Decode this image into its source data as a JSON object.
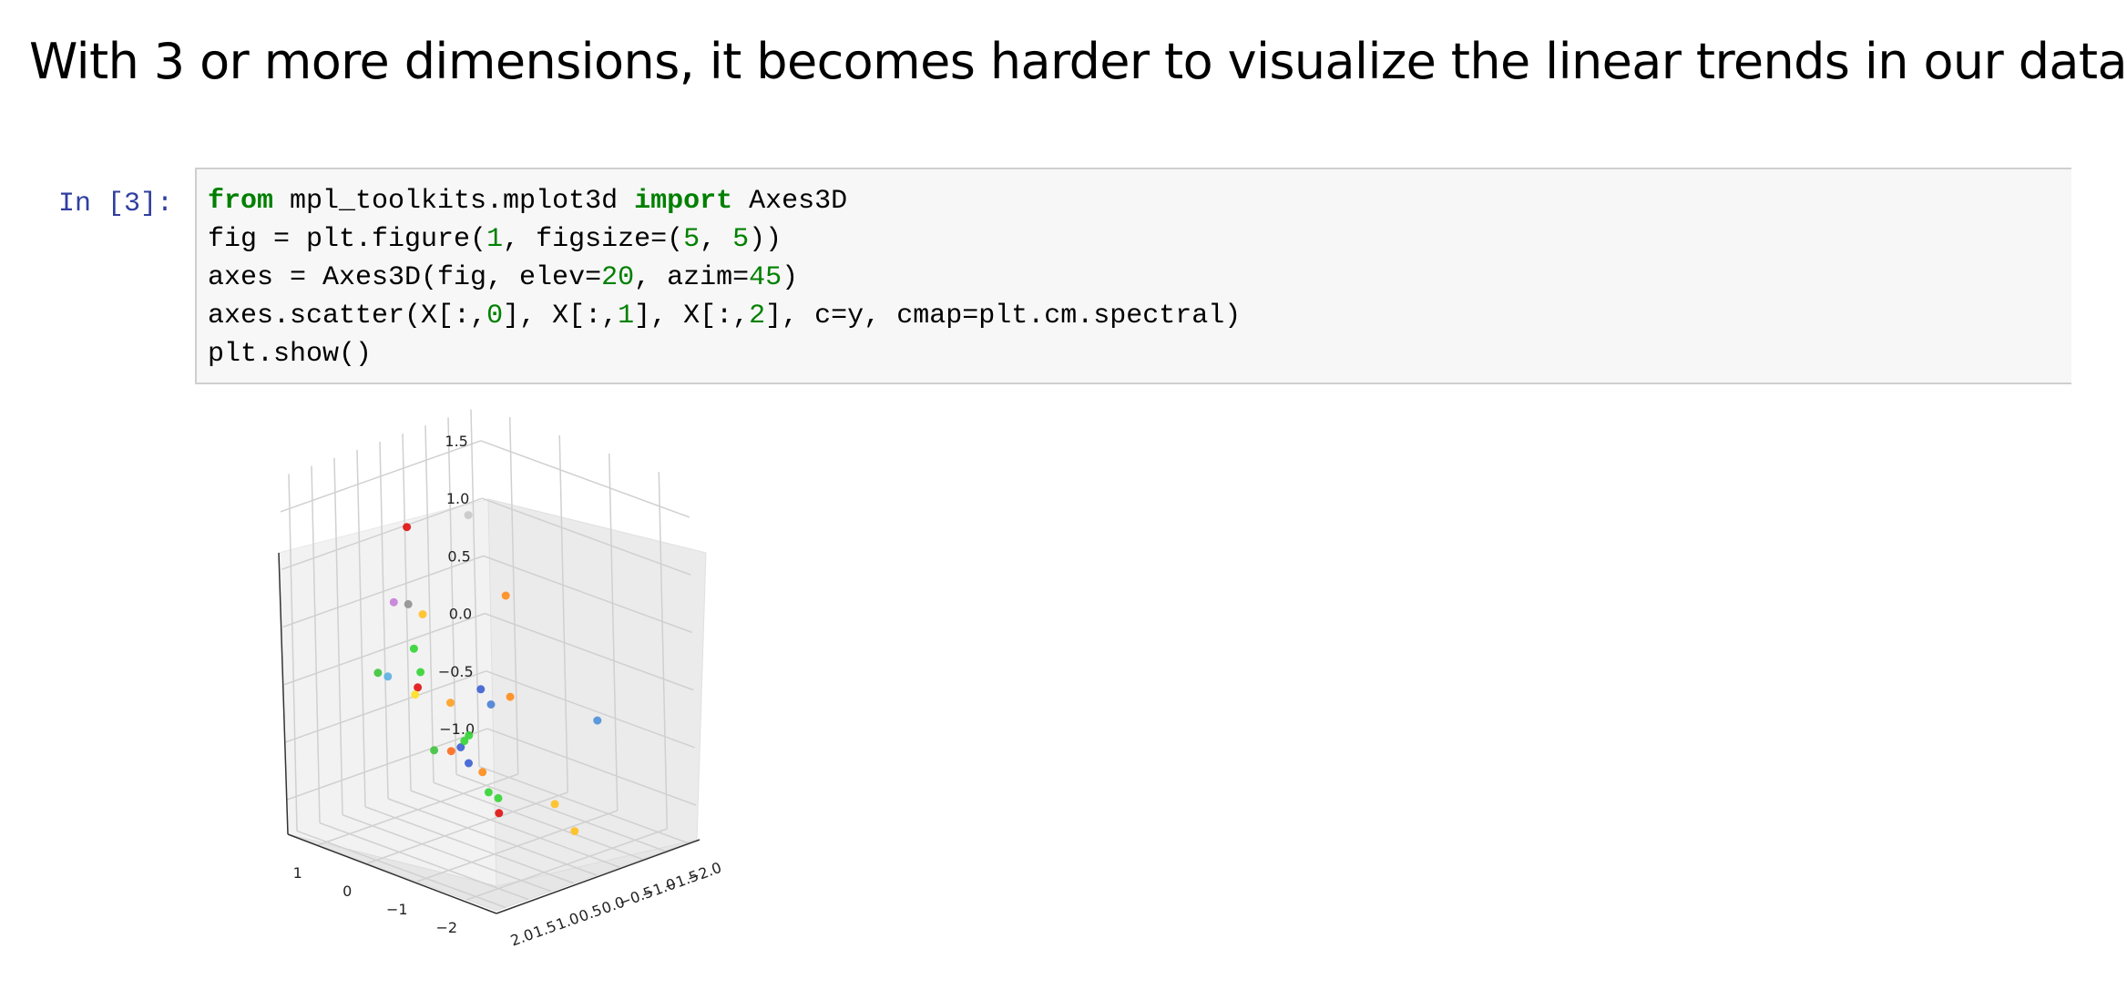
{
  "heading": "With 3 or more dimensions, it becomes harder to visualize the linear trends in our data",
  "cell": {
    "prompt": "In [3]:",
    "code_lines": [
      [
        {
          "t": "kw",
          "v": "from"
        },
        {
          "t": "p",
          "v": " mpl_toolkits.mplot3d "
        },
        {
          "t": "kw",
          "v": "import"
        },
        {
          "t": "p",
          "v": " Axes3D"
        }
      ],
      [
        {
          "t": "p",
          "v": "fig = plt.figure("
        },
        {
          "t": "num",
          "v": "1"
        },
        {
          "t": "p",
          "v": ", figsize=("
        },
        {
          "t": "num",
          "v": "5"
        },
        {
          "t": "p",
          "v": ", "
        },
        {
          "t": "num",
          "v": "5"
        },
        {
          "t": "p",
          "v": "))"
        }
      ],
      [
        {
          "t": "p",
          "v": "axes = Axes3D(fig, elev="
        },
        {
          "t": "num",
          "v": "20"
        },
        {
          "t": "p",
          "v": ", azim="
        },
        {
          "t": "num",
          "v": "45"
        },
        {
          "t": "p",
          "v": ")"
        }
      ],
      [
        {
          "t": "p",
          "v": "axes.scatter(X[:,"
        },
        {
          "t": "num",
          "v": "0"
        },
        {
          "t": "p",
          "v": "], X[:,"
        },
        {
          "t": "num",
          "v": "1"
        },
        {
          "t": "p",
          "v": "], X[:,"
        },
        {
          "t": "num",
          "v": "2"
        },
        {
          "t": "p",
          "v": "], c=y, cmap=plt.cm.spectral)"
        }
      ],
      [
        {
          "t": "p",
          "v": "plt.show()"
        }
      ]
    ]
  },
  "output": {
    "chart_data": {
      "type": "scatter",
      "projection": "3d",
      "elev": 20,
      "azim": 45,
      "grid": true,
      "title": "",
      "xlabel": "",
      "ylabel": "",
      "zlabel": "",
      "x_ticks": [
        "−2",
        "−1",
        "0",
        "1"
      ],
      "y_ticks": [
        "2.0",
        "1.5",
        "1.0",
        "0.5",
        "0.0",
        "−0.5",
        "−1.0",
        "−1.5",
        "−2.0"
      ],
      "z_ticks": [
        "1.5",
        "1.0",
        "0.5",
        "0.0",
        "−0.5",
        "−1.0"
      ],
      "xlim": [
        -2.6,
        1.6
      ],
      "ylim": [
        -2.2,
        2.2
      ],
      "zlim": [
        -1.3,
        1.8
      ],
      "points": [
        {
          "x": -2.5,
          "y": -0.2,
          "z": 0.0,
          "color": "#4a90d9"
        },
        {
          "x": -1.0,
          "y": 0.9,
          "z": 1.7,
          "color": "#c8c8c8"
        },
        {
          "x": -1.35,
          "y": 0.5,
          "z": 1.0,
          "color": "#ff8c1a"
        },
        {
          "x": -1.3,
          "y": 0.4,
          "z": 0.1,
          "color": "#ff8c1a"
        },
        {
          "x": -1.0,
          "y": 0.5,
          "z": 0.0,
          "color": "#4a7fd4"
        },
        {
          "x": -0.8,
          "y": 0.5,
          "z": 0.1,
          "color": "#3b5fd0"
        },
        {
          "x": -0.8,
          "y": 0.8,
          "z": -0.5,
          "color": "#3b5fd0"
        },
        {
          "x": -0.6,
          "y": 0.75,
          "z": -0.4,
          "color": "#3b5fd0"
        },
        {
          "x": -0.45,
          "y": 0.8,
          "z": -0.45,
          "color": "#ff6a1a"
        },
        {
          "x": -0.55,
          "y": 0.9,
          "z": 0.0,
          "color": "#ffa020"
        },
        {
          "x": -0.4,
          "y": 1.3,
          "z": 0.8,
          "color": "#ffc020"
        },
        {
          "x": -0.3,
          "y": 1.5,
          "z": 0.9,
          "color": "#909090"
        },
        {
          "x": -0.1,
          "y": 1.6,
          "z": 0.9,
          "color": "#c77dd8"
        },
        {
          "x": -0.3,
          "y": 1.4,
          "z": 0.5,
          "color": "#33d433"
        },
        {
          "x": -0.05,
          "y": 1.0,
          "z": 0.2,
          "color": "#33d433"
        },
        {
          "x": 0.2,
          "y": 0.8,
          "z": 0.0,
          "color": "#e01010"
        },
        {
          "x": 0.35,
          "y": 0.7,
          "z": -0.1,
          "color": "#ffe020"
        },
        {
          "x": -0.4,
          "y": 1.6,
          "z": 1.6,
          "color": "#e01010"
        },
        {
          "x": 0.8,
          "y": 0.8,
          "z": 0.0,
          "color": "#5ab0e0"
        },
        {
          "x": 1.0,
          "y": 0.8,
          "z": 0.0,
          "color": "#3cc43c"
        },
        {
          "x": 0.3,
          "y": -0.4,
          "z": -0.6,
          "color": "#33d433"
        },
        {
          "x": 0.35,
          "y": -0.35,
          "z": -0.65,
          "color": "#33d433"
        },
        {
          "x": -0.05,
          "y": -0.3,
          "z": -0.85,
          "color": "#ff8c1a"
        },
        {
          "x": 0.2,
          "y": -0.9,
          "z": -1.2,
          "color": "#33d433"
        },
        {
          "x": 0.3,
          "y": -0.8,
          "z": -1.15,
          "color": "#33d433"
        },
        {
          "x": 0.1,
          "y": -0.8,
          "z": -1.3,
          "color": "#e01010"
        },
        {
          "x": 1.2,
          "y": -0.6,
          "z": -0.9,
          "color": "#3cc43c"
        },
        {
          "x": -1.8,
          "y": -0.4,
          "z": -1.1,
          "color": "#ffc020"
        },
        {
          "x": -0.2,
          "y": -1.7,
          "z": -1.3,
          "color": "#ffc020"
        }
      ]
    }
  }
}
